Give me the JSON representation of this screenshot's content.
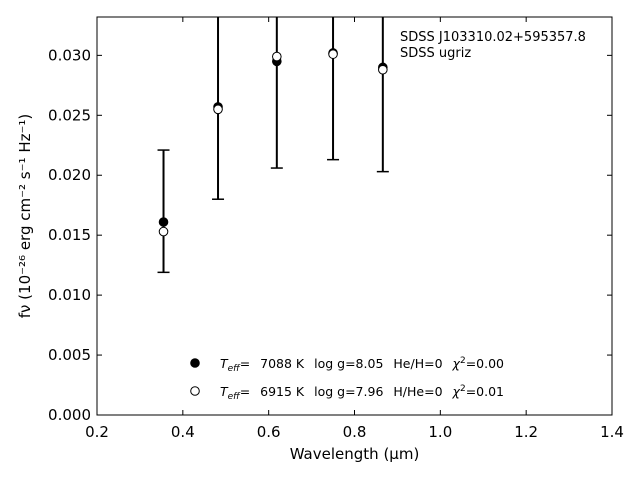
{
  "chart_data": {
    "type": "scatter",
    "xlabel": "Wavelength (μm)",
    "ylabel": "fν (10⁻²⁶ erg cm⁻² s⁻¹ Hz⁻¹)",
    "xlim": [
      0.2,
      1.4
    ],
    "ylim": [
      0.0,
      0.0332
    ],
    "xticks": [
      "0.2",
      "0.4",
      "0.6",
      "0.8",
      "1.0",
      "1.2",
      "1.4"
    ],
    "yticks": [
      "0.000",
      "0.005",
      "0.010",
      "0.015",
      "0.020",
      "0.025",
      "0.030"
    ],
    "annotation": [
      "SDSS J103310.02+595357.8",
      "SDSS ugriz"
    ],
    "observed": {
      "x": [
        0.355,
        0.482,
        0.619,
        0.75,
        0.866
      ],
      "y": [
        0.0161,
        0.0257,
        0.0295,
        0.0302,
        0.029
      ],
      "err_low": [
        0.0119,
        0.018,
        0.0206,
        0.0213,
        0.0203
      ],
      "err_high": [
        0.0221,
        0.0345,
        0.0345,
        0.0345,
        0.0345
      ]
    },
    "series": [
      {
        "marker": "filled-circle",
        "x": [
          0.355,
          0.482,
          0.619,
          0.75,
          0.866
        ],
        "y": [
          0.0161,
          0.0257,
          0.0295,
          0.0302,
          0.029
        ],
        "legend": {
          "teff_value": "7088 K",
          "logg": "log g=8.05",
          "comp": "He/H=0",
          "chi2": "=0.00"
        }
      },
      {
        "marker": "open-circle",
        "x": [
          0.355,
          0.482,
          0.619,
          0.75,
          0.866
        ],
        "y": [
          0.0153,
          0.0255,
          0.0299,
          0.0301,
          0.0288
        ],
        "legend": {
          "teff_value": "6915 K",
          "logg": "log g=7.96",
          "comp": "H/He=0",
          "chi2": "=0.01"
        }
      }
    ]
  }
}
